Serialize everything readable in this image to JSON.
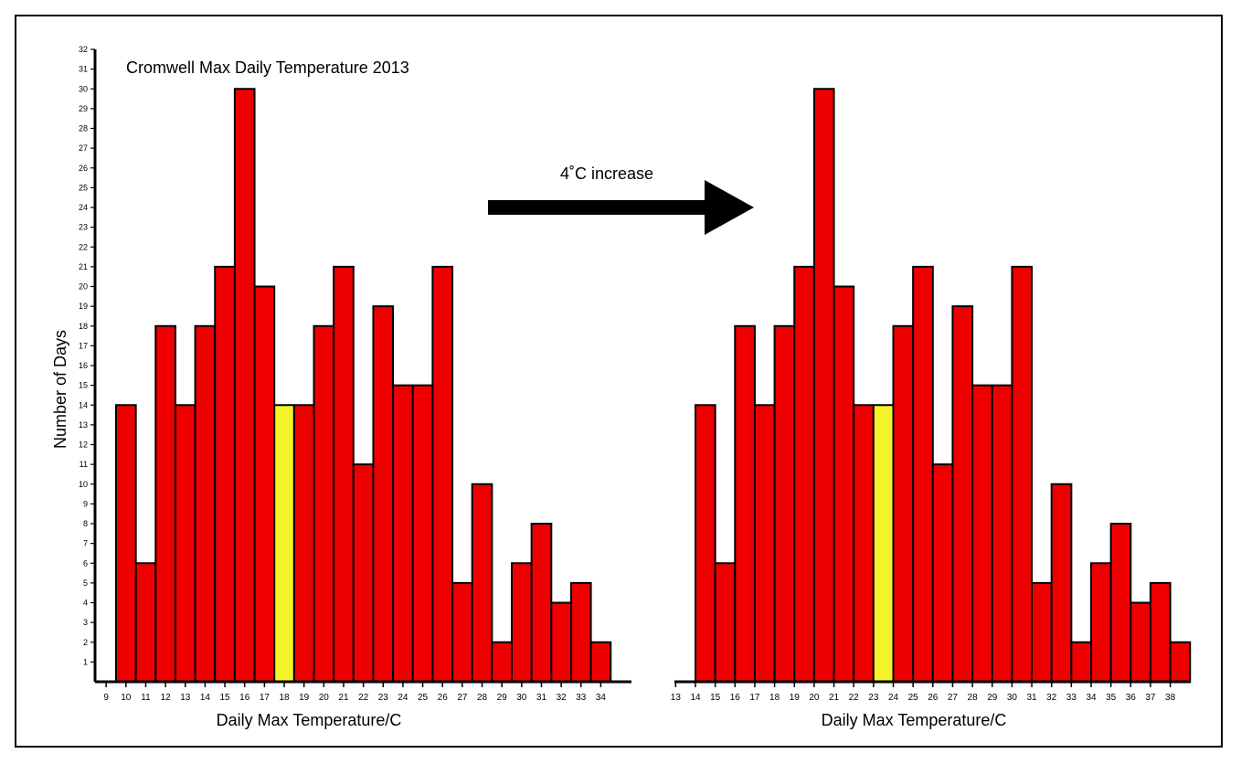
{
  "chart_data": [
    {
      "type": "bar",
      "title": "Cromwell Max Daily Temperature 2013",
      "xlabel": "Daily Max Temperature/C",
      "ylabel": "Number of Days",
      "ylim": [
        0,
        32
      ],
      "x_tick_labels": [
        "9",
        "10",
        "11",
        "12",
        "13",
        "14",
        "15",
        "16",
        "17",
        "18",
        "19",
        "20",
        "21",
        "22",
        "23",
        "24",
        "25",
        "26",
        "27",
        "28",
        "29",
        "30",
        "31",
        "32",
        "33",
        "34"
      ],
      "values": [
        14,
        6,
        18,
        14,
        18,
        21,
        30,
        20,
        14,
        14,
        18,
        21,
        11,
        19,
        15,
        15,
        21,
        5,
        10,
        2,
        6,
        8,
        4,
        5,
        2
      ],
      "highlight_index": 8,
      "bar_color": "#ee0000",
      "highlight_color": "#f4f42a"
    },
    {
      "type": "bar",
      "title": "",
      "xlabel": "Daily Max Temperature/C",
      "ylabel": "",
      "ylim": [
        0,
        32
      ],
      "x_tick_labels": [
        "13",
        "14",
        "15",
        "16",
        "17",
        "18",
        "19",
        "20",
        "21",
        "22",
        "23",
        "24",
        "25",
        "26",
        "27",
        "28",
        "29",
        "30",
        "31",
        "32",
        "33",
        "34",
        "35",
        "36",
        "37",
        "38"
      ],
      "values": [
        14,
        6,
        18,
        14,
        18,
        21,
        30,
        20,
        14,
        14,
        18,
        21,
        11,
        19,
        15,
        15,
        21,
        5,
        10,
        2,
        6,
        8,
        4,
        5,
        2
      ],
      "highlight_index": 9,
      "bar_color": "#ee0000",
      "highlight_color": "#f4f42a"
    }
  ],
  "y_tick_labels": [
    "1",
    "2",
    "3",
    "4",
    "5",
    "6",
    "7",
    "8",
    "9",
    "10",
    "11",
    "12",
    "13",
    "14",
    "15",
    "16",
    "17",
    "18",
    "19",
    "20",
    "21",
    "22",
    "23",
    "24",
    "25",
    "26",
    "27",
    "28",
    "29",
    "30",
    "31",
    "32"
  ],
  "annotation": {
    "text": "4˚C increase",
    "arrow_color": "#000000"
  }
}
